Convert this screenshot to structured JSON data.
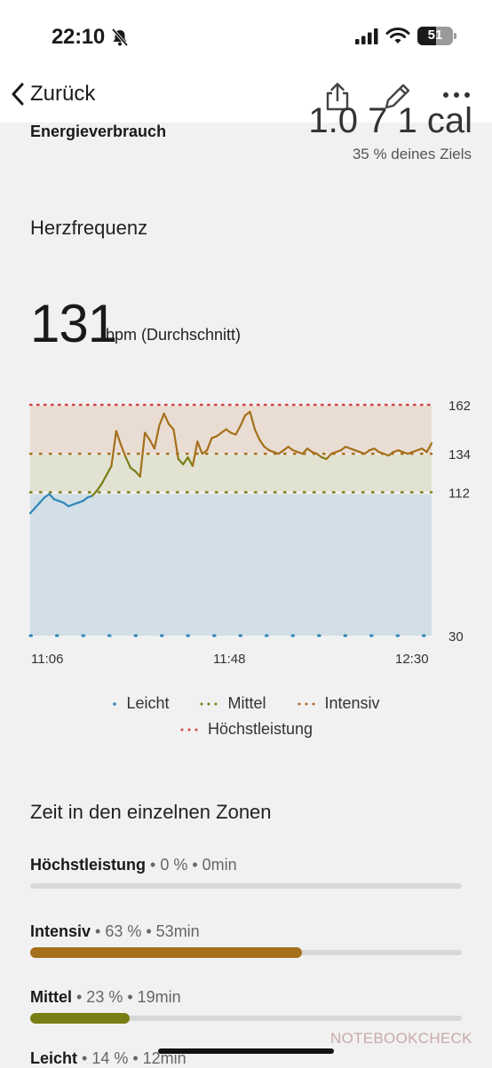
{
  "status_bar": {
    "time": "22:10",
    "battery": "51"
  },
  "nav": {
    "back_label": "Zurück"
  },
  "energy": {
    "value": "1.0 7 1 cal",
    "label": "Energieverbrauch",
    "goal": "35 % deines Ziels"
  },
  "heart_rate": {
    "title": "Herzfrequenz",
    "value": "131",
    "unit": "bpm (Durchschnitt)"
  },
  "colors": {
    "leicht": "#2e86b8",
    "mittel": "#7a7d14",
    "intensiv": "#a56f1b",
    "hoechstleistung": "#d24545"
  },
  "chart_data": {
    "type": "line",
    "x_ticks": [
      "11:06",
      "11:48",
      "12:30"
    ],
    "x_range_minutes": [
      0,
      84
    ],
    "y_ticks": [
      30,
      112,
      134,
      162
    ],
    "ylim": [
      30,
      162
    ],
    "zones": [
      {
        "name": "Leicht",
        "from": 30,
        "to": 112
      },
      {
        "name": "Mittel",
        "from": 112,
        "to": 134
      },
      {
        "name": "Intensiv",
        "from": 134,
        "to": 162
      },
      {
        "name": "Höchstleistung",
        "from": 162,
        "to": 162
      }
    ],
    "series": [
      {
        "x": [
          0,
          1,
          2,
          3,
          4,
          5,
          6,
          7,
          8,
          9,
          10,
          11,
          12,
          13,
          14,
          15,
          16,
          17,
          18,
          19,
          20,
          21,
          22,
          23,
          24,
          25,
          26,
          27,
          28,
          29,
          30,
          31,
          32,
          33,
          34,
          35,
          36,
          37,
          38,
          39,
          40,
          41,
          42,
          43,
          44,
          45,
          46,
          47,
          48,
          49,
          50,
          51,
          52,
          53,
          54,
          55,
          56,
          57,
          58,
          59,
          60,
          61,
          62,
          63,
          64,
          65,
          66,
          67,
          68,
          69,
          70,
          71,
          72,
          73,
          74,
          75,
          76,
          77,
          78,
          79,
          80,
          81,
          82,
          83,
          84
        ],
        "values": [
          100,
          103,
          106,
          109,
          111,
          108,
          107,
          106,
          104,
          105,
          106,
          107,
          109,
          110,
          113,
          117,
          122,
          127,
          147,
          139,
          132,
          126,
          124,
          121,
          146,
          142,
          137,
          150,
          157,
          151,
          148,
          131,
          128,
          132,
          127,
          141,
          134,
          136,
          143,
          144,
          146,
          148,
          146,
          145,
          150,
          156,
          158,
          148,
          142,
          138,
          136,
          135,
          134,
          136,
          138,
          136,
          135,
          134,
          137,
          135,
          134,
          132,
          131,
          134,
          135,
          136,
          138,
          137,
          136,
          135,
          134,
          136,
          137,
          135,
          134,
          133,
          135,
          136,
          135,
          134,
          135,
          136,
          137,
          135,
          140
        ]
      }
    ],
    "legend": [
      "Leicht",
      "Mittel",
      "Intensiv",
      "Höchstleistung"
    ]
  },
  "zones": {
    "title": "Zeit in den einzelnen Zonen",
    "items": [
      {
        "name": "Höchstleistung",
        "details": " • 0 % • 0min",
        "percent": 0
      },
      {
        "name": "Intensiv",
        "details": " • 63 % • 53min",
        "percent": 63
      },
      {
        "name": "Mittel",
        "details": " • 23 % • 19min",
        "percent": 23
      },
      {
        "name": "Leicht",
        "details": " • 14 % • 12min",
        "percent": 14
      }
    ]
  },
  "watermark": "NOTEBOOKCHECK"
}
